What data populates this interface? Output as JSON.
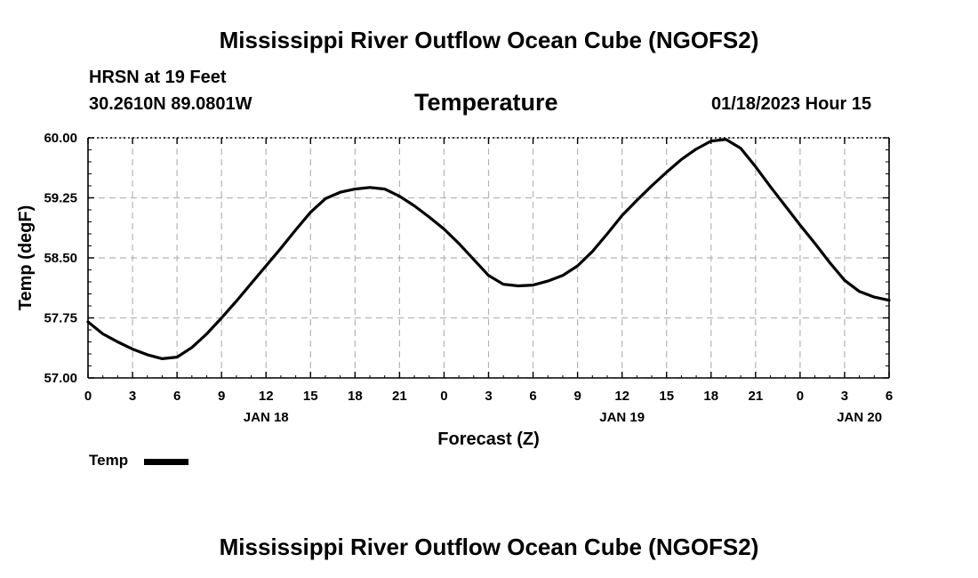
{
  "header": {
    "title": "Mississippi River Outflow Ocean Cube (NGOFS2)",
    "station": "HRSN at 19 Feet",
    "coordinates": "30.2610N  89.0801W",
    "variable": "Temperature",
    "timestamp": "01/18/2023 Hour 15"
  },
  "footer": {
    "title": "Mississippi River Outflow Ocean Cube (NGOFS2)"
  },
  "legend": {
    "label": "Temp"
  },
  "colors": {
    "line": "#000000",
    "grid": "#b4b4b4",
    "background": "#ffffff"
  },
  "chart_data": {
    "type": "line",
    "title": "Temperature",
    "xlabel": "Forecast (Z)",
    "ylabel": "Temp (degF)",
    "xlim": [
      0,
      54
    ],
    "ylim": [
      57.0,
      60.0
    ],
    "x_ticks": [
      0,
      3,
      6,
      9,
      12,
      15,
      18,
      21,
      24,
      27,
      30,
      33,
      36,
      39,
      42,
      45,
      48,
      51,
      54
    ],
    "x_tick_labels": [
      "0",
      "3",
      "6",
      "9",
      "12",
      "15",
      "18",
      "21",
      "0",
      "3",
      "6",
      "9",
      "12",
      "15",
      "18",
      "21",
      "0",
      "3",
      "6"
    ],
    "date_labels": [
      {
        "x": 12,
        "label": "JAN 18"
      },
      {
        "x": 36,
        "label": "JAN 19"
      },
      {
        "x": 52,
        "label": "JAN 20"
      }
    ],
    "y_ticks": [
      57.0,
      57.75,
      58.5,
      59.25,
      60.0
    ],
    "y_tick_labels": [
      "57.00",
      "57.75",
      "58.50",
      "59.25",
      "60.00"
    ],
    "grid": true,
    "series": [
      {
        "name": "Temp",
        "x": [
          0,
          1,
          2,
          3,
          4,
          5,
          6,
          7,
          8,
          9,
          10,
          11,
          12,
          13,
          14,
          15,
          16,
          17,
          18,
          19,
          20,
          21,
          22,
          23,
          24,
          25,
          26,
          27,
          28,
          29,
          30,
          31,
          32,
          33,
          34,
          35,
          36,
          37,
          38,
          39,
          40,
          41,
          42,
          43,
          44,
          45,
          46,
          47,
          48,
          49,
          50,
          51,
          52,
          53,
          54
        ],
        "values": [
          57.7,
          57.55,
          57.45,
          57.36,
          57.29,
          57.24,
          57.26,
          57.38,
          57.55,
          57.75,
          57.96,
          58.18,
          58.4,
          58.62,
          58.85,
          59.07,
          59.24,
          59.32,
          59.36,
          59.38,
          59.36,
          59.27,
          59.15,
          59.01,
          58.86,
          58.68,
          58.48,
          58.28,
          58.17,
          58.15,
          58.16,
          58.21,
          58.28,
          58.4,
          58.58,
          58.8,
          59.03,
          59.22,
          59.4,
          59.57,
          59.73,
          59.86,
          59.96,
          59.98,
          59.87,
          59.64,
          59.39,
          59.15,
          58.91,
          58.68,
          58.44,
          58.22,
          58.08,
          58.01,
          57.97
        ]
      }
    ]
  }
}
